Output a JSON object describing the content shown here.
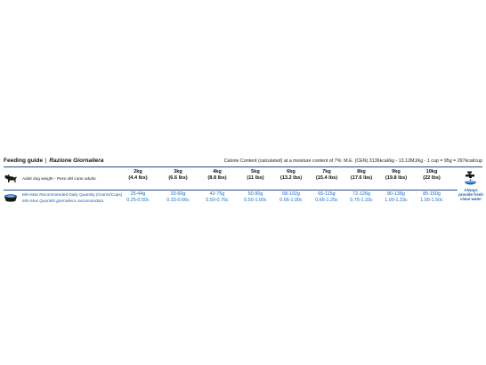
{
  "header": {
    "title": "Feeding guide",
    "separator": "|",
    "title_it": "Razione Giornaliera",
    "calorie": "Calorie Content (calculated) at a moisture content of 7%: M.E. (CEN) 3136kcal/kg - 13.12MJ/kg - 1 cup = 95g = 297kcal/cup"
  },
  "dog_row": {
    "icon": "dog-icon",
    "label": "Adult dog weight - ",
    "label_it": "Peso del cane adulto"
  },
  "weights": [
    {
      "kg": "2kg",
      "lbs": "(4.4 lbs)"
    },
    {
      "kg": "3kg",
      "lbs": "(6.6 lbs)"
    },
    {
      "kg": "4kg",
      "lbs": "(8.8 lbs)"
    },
    {
      "kg": "5kg",
      "lbs": "(11 lbs)"
    },
    {
      "kg": "6kg",
      "lbs": "(13.2 lbs)"
    },
    {
      "kg": "7kg",
      "lbs": "(15.4 lbs)"
    },
    {
      "kg": "8kg",
      "lbs": "(17.6 lbs)"
    },
    {
      "kg": "9kg",
      "lbs": "(19.8 lbs)"
    },
    {
      "kg": "10kg",
      "lbs": "(22 lbs)"
    }
  ],
  "quantity_row": {
    "icon": "bowl-icon",
    "label": "Min-Max Recommended Daily Quantity (Grams/Cups)",
    "label_it": "Min-Max Quantità giornaliera raccomandata"
  },
  "quantities": [
    {
      "grams": "25-44g",
      "cups": "0.25-0.50c"
    },
    {
      "grams": "33-60g",
      "cups": "0.33-0.66c"
    },
    {
      "grams": "42-75g",
      "cups": "0.50-0.75c"
    },
    {
      "grams": "50-90g",
      "cups": "0.50-1.00c"
    },
    {
      "grams": "58-102g",
      "cups": "0.66-1.00c"
    },
    {
      "grams": "65-115g",
      "cups": "0.66-1.25c"
    },
    {
      "grams": "72-126g",
      "cups": "0.75-1.33c"
    },
    {
      "grams": "80-138g",
      "cups": "1.00-1.33c"
    },
    {
      "grams": "85-150g",
      "cups": "1.00-1.50c"
    }
  ],
  "water": {
    "icon": "water-tap-icon",
    "line1": "Always",
    "line2": "provide fresh",
    "line3": "clean water"
  },
  "colors": {
    "accent": "#1b6fc2",
    "rule": "#2a4b8d"
  }
}
